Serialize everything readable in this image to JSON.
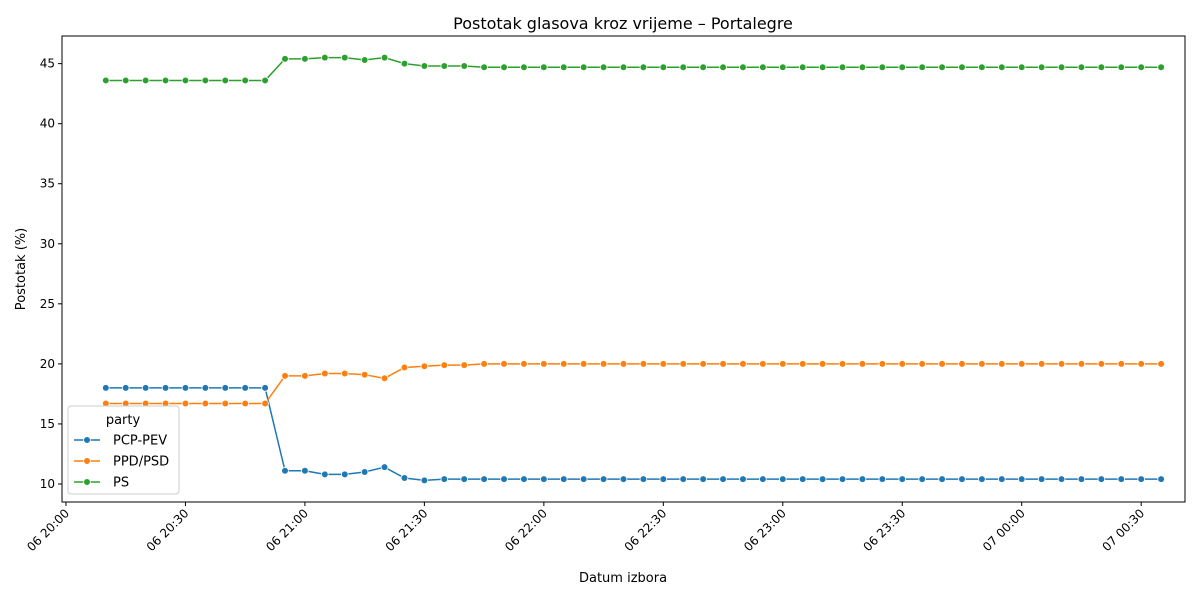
{
  "chart_data": {
    "type": "line",
    "title": "Postotak glasova kroz vrijeme – Portalegre",
    "xlabel": "Datum izbora",
    "ylabel": "Postotak (%)",
    "x_ticks": [
      "06 20:00",
      "06 20:30",
      "06 21:00",
      "06 21:30",
      "06 22:00",
      "06 22:30",
      "06 23:00",
      "06 23:30",
      "07 00:00",
      "07 00:30"
    ],
    "y_ticks": [
      10,
      15,
      20,
      25,
      30,
      35,
      40,
      45
    ],
    "ylim": [
      8.5,
      47.3
    ],
    "xlim": [
      "06 19:59",
      "07 00:41"
    ],
    "grid": false,
    "legend": {
      "title": "party",
      "placement": "lower-left"
    },
    "x": [
      "06 20:10",
      "06 20:15",
      "06 20:20",
      "06 20:25",
      "06 20:30",
      "06 20:35",
      "06 20:40",
      "06 20:45",
      "06 20:50",
      "06 20:55",
      "06 21:00",
      "06 21:05",
      "06 21:10",
      "06 21:15",
      "06 21:20",
      "06 21:25",
      "06 21:30",
      "06 21:35",
      "06 21:40",
      "06 21:45",
      "06 21:50",
      "06 21:55",
      "06 22:00",
      "06 22:05",
      "06 22:10",
      "06 22:15",
      "06 22:20",
      "06 22:25",
      "06 22:30",
      "06 22:35",
      "06 22:40",
      "06 22:45",
      "06 22:50",
      "06 22:55",
      "06 23:00",
      "06 23:05",
      "06 23:10",
      "06 23:15",
      "06 23:20",
      "06 23:25",
      "06 23:30",
      "06 23:35",
      "06 23:40",
      "06 23:45",
      "06 23:50",
      "06 23:55",
      "07 00:00",
      "07 00:05",
      "07 00:10",
      "07 00:15",
      "07 00:20",
      "07 00:25",
      "07 00:30",
      "07 00:35"
    ],
    "series": [
      {
        "name": "PCP-PEV",
        "color": "#1f77b4",
        "values": [
          18.0,
          18.0,
          18.0,
          18.0,
          18.0,
          18.0,
          18.0,
          18.0,
          18.0,
          11.1,
          11.1,
          10.8,
          10.8,
          11.0,
          11.4,
          10.5,
          10.3,
          10.4,
          10.4,
          10.4,
          10.4,
          10.4,
          10.4,
          10.4,
          10.4,
          10.4,
          10.4,
          10.4,
          10.4,
          10.4,
          10.4,
          10.4,
          10.4,
          10.4,
          10.4,
          10.4,
          10.4,
          10.4,
          10.4,
          10.4,
          10.4,
          10.4,
          10.4,
          10.4,
          10.4,
          10.4,
          10.4,
          10.4,
          10.4,
          10.4,
          10.4,
          10.4,
          10.4,
          10.4
        ]
      },
      {
        "name": "PPD/PSD",
        "color": "#ff7f0e",
        "values": [
          16.7,
          16.7,
          16.7,
          16.7,
          16.7,
          16.7,
          16.7,
          16.7,
          16.7,
          19.0,
          19.0,
          19.2,
          19.2,
          19.1,
          18.8,
          19.7,
          19.8,
          19.9,
          19.9,
          20.0,
          20.0,
          20.0,
          20.0,
          20.0,
          20.0,
          20.0,
          20.0,
          20.0,
          20.0,
          20.0,
          20.0,
          20.0,
          20.0,
          20.0,
          20.0,
          20.0,
          20.0,
          20.0,
          20.0,
          20.0,
          20.0,
          20.0,
          20.0,
          20.0,
          20.0,
          20.0,
          20.0,
          20.0,
          20.0,
          20.0,
          20.0,
          20.0,
          20.0,
          20.0
        ]
      },
      {
        "name": "PS",
        "color": "#2ca02c",
        "values": [
          43.6,
          43.6,
          43.6,
          43.6,
          43.6,
          43.6,
          43.6,
          43.6,
          43.6,
          45.4,
          45.4,
          45.5,
          45.5,
          45.3,
          45.5,
          45.0,
          44.8,
          44.8,
          44.8,
          44.7,
          44.7,
          44.7,
          44.7,
          44.7,
          44.7,
          44.7,
          44.7,
          44.7,
          44.7,
          44.7,
          44.7,
          44.7,
          44.7,
          44.7,
          44.7,
          44.7,
          44.7,
          44.7,
          44.7,
          44.7,
          44.7,
          44.7,
          44.7,
          44.7,
          44.7,
          44.7,
          44.7,
          44.7,
          44.7,
          44.7,
          44.7,
          44.7,
          44.7,
          44.7
        ]
      }
    ]
  }
}
